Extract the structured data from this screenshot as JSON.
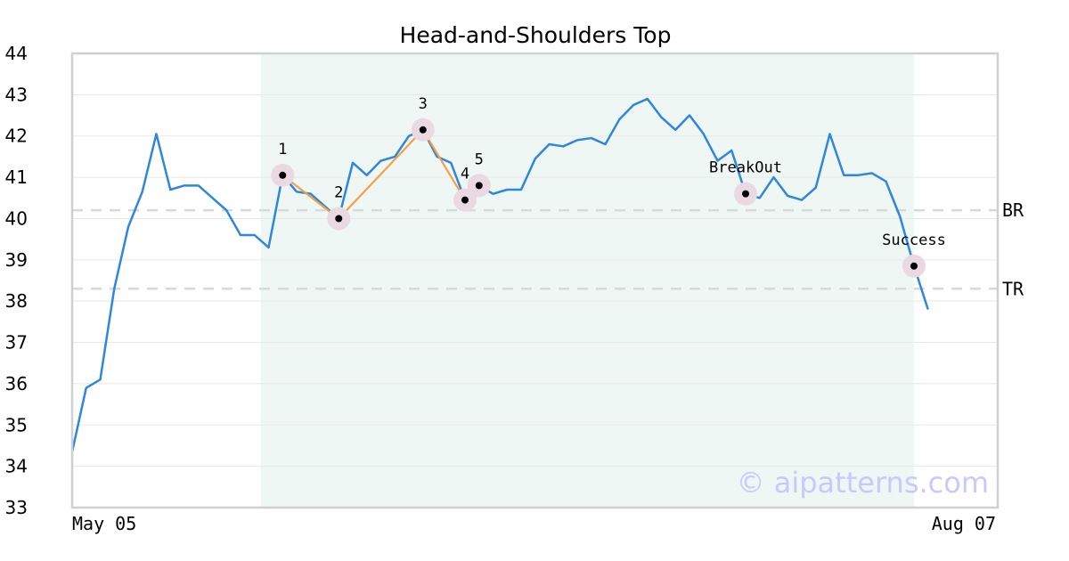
{
  "chart_data": {
    "type": "line",
    "title": "Head-and-Shoulders Top",
    "xlabel": "",
    "ylabel": "",
    "ylim": [
      33,
      44
    ],
    "yticks": [
      33,
      34,
      35,
      36,
      37,
      38,
      39,
      40,
      41,
      42,
      43,
      44
    ],
    "xtick_labels": [
      "May 05",
      "Aug 07"
    ],
    "grid": true,
    "colors": {
      "price_line": "#2e86de",
      "pattern_line": "#f5a04a",
      "pattern_band": "#eef7f3",
      "marker_halo": "#ead9e0",
      "marker_dot": "#000000",
      "level_line": "#d9d9d9",
      "watermark": "#c9c9ff"
    },
    "series": [
      {
        "values": [
          34.35,
          35.9,
          36.1,
          38.3,
          39.8,
          40.65,
          42.05,
          40.7,
          40.8,
          40.8,
          40.5,
          40.2,
          39.6,
          39.6,
          39.3,
          41.05,
          40.65,
          40.6,
          40.3,
          40.0,
          41.35,
          41.05,
          41.4,
          41.5,
          42.0,
          42.15,
          41.5,
          41.35,
          40.45,
          40.8,
          40.6,
          40.7,
          40.7,
          41.45,
          41.8,
          41.75,
          41.9,
          41.95,
          41.8,
          42.4,
          42.75,
          42.9,
          42.45,
          42.15,
          42.5,
          42.05,
          41.4,
          41.65,
          40.6,
          40.5,
          41.0,
          40.55,
          40.45,
          40.75,
          42.05,
          41.05,
          41.05,
          41.1,
          40.9,
          40.05,
          38.85,
          37.8
        ]
      }
    ],
    "pattern_band": {
      "from_index": 13,
      "to_index": 60
    },
    "pattern_points": [
      {
        "label": "1",
        "index": 15,
        "value": 41.05
      },
      {
        "label": "2",
        "index": 19,
        "value": 40.0
      },
      {
        "label": "3",
        "index": 25,
        "value": 42.15
      },
      {
        "label": "4",
        "index": 28,
        "value": 40.45
      },
      {
        "label": "5",
        "index": 29,
        "value": 40.8
      },
      {
        "label": "BreakOut",
        "index": 48,
        "value": 40.6
      },
      {
        "label": "Success",
        "index": 60,
        "value": 38.85
      }
    ],
    "levels": [
      {
        "label": "BR",
        "value": 40.2
      },
      {
        "label": "TR",
        "value": 38.3
      }
    ],
    "watermark": "© aipatterns.com"
  }
}
